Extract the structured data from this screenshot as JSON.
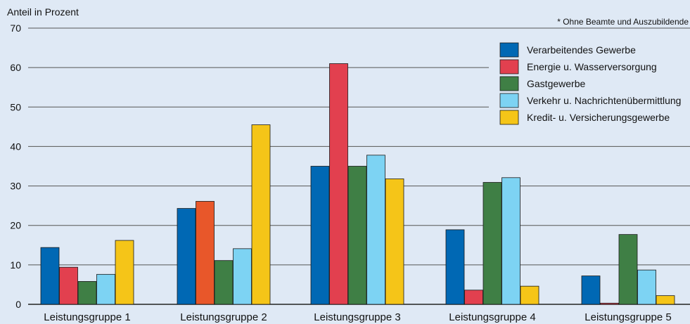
{
  "chart_data": {
    "type": "bar",
    "title": "",
    "ylabel": "Anteil in Prozent",
    "xlabel": "",
    "note": "* Ohne Beamte und Auszubildende",
    "ylim": [
      0,
      70
    ],
    "yticks": [
      0,
      10,
      20,
      30,
      40,
      50,
      60,
      70
    ],
    "grid": true,
    "legend_position": "top-right",
    "categories": [
      "Leistungsgruppe 1",
      "Leistungsgruppe 2",
      "Leistungsgruppe 3",
      "Leistungsgruppe 4",
      "Leistungsgruppe 5"
    ],
    "series": [
      {
        "name": "Verarbeitendes Gewerbe",
        "color": "#0068b4",
        "values": [
          14.4,
          24.3,
          35.0,
          18.9,
          7.2
        ]
      },
      {
        "name": "Energie u. Wasserversorgung",
        "color": "#e2404f",
        "values": [
          9.4,
          26.1,
          61.0,
          3.6,
          0.3
        ]
      },
      {
        "name": "Gastgewerbe",
        "color": "#3f7f45",
        "values": [
          5.8,
          11.1,
          35.0,
          30.9,
          17.7
        ]
      },
      {
        "name": "Verkehr u. Nachrichtenübermittlung",
        "color": "#7dd3f3",
        "values": [
          7.6,
          14.1,
          37.8,
          32.1,
          8.7
        ]
      },
      {
        "name": "Kredit- u. Versicherungsgewerbe",
        "color": "#f5c518",
        "values": [
          16.2,
          45.5,
          31.8,
          4.6,
          2.2
        ]
      }
    ],
    "highlight_bars": [
      {
        "category_index": 1,
        "series_index": 1,
        "color": "#e8572a"
      }
    ]
  }
}
